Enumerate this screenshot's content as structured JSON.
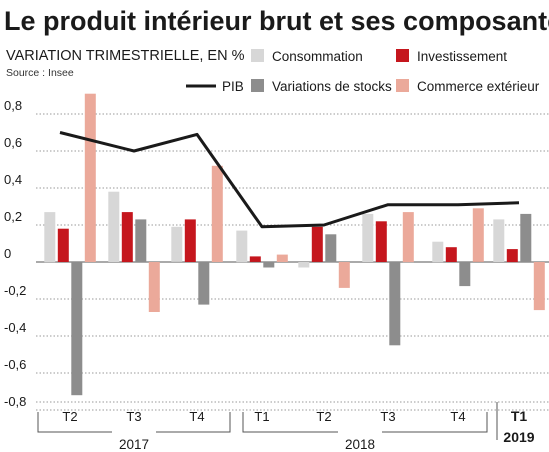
{
  "header": {
    "title": "Le produit intérieur brut et ses composantes",
    "subtitle": "VARIATION TRIMESTRIELLE, EN %",
    "source": "Source : Insee"
  },
  "colors": {
    "consommation": "#d7d7d7",
    "investissement": "#c5161d",
    "stocks": "#8d8d8d",
    "commerce": "#eba99a",
    "pib": "#1a1a1a",
    "grid": "#9a9a9a"
  },
  "chart_data": {
    "type": "bar",
    "title": "Le produit intérieur brut et ses composantes",
    "subtitle": "VARIATION TRIMESTRIELLE, EN %",
    "categories": [
      "T2",
      "T3",
      "T4",
      "T1",
      "T2",
      "T3",
      "T4",
      "T1"
    ],
    "year_groups": [
      {
        "label": "2017",
        "from": 0,
        "to": 2
      },
      {
        "label": "2018",
        "from": 3,
        "to": 6
      },
      {
        "label": "2019",
        "from": 7,
        "to": 7
      }
    ],
    "ylim": [
      -0.85,
      0.85
    ],
    "yticks": [
      {
        "v": 0.8,
        "label": "0,8"
      },
      {
        "v": 0.6,
        "label": "0,6"
      },
      {
        "v": 0.4,
        "label": "0,4"
      },
      {
        "v": 0.2,
        "label": "0,2"
      },
      {
        "v": 0,
        "label": "0"
      },
      {
        "v": -0.2,
        "label": "-0,2"
      },
      {
        "v": -0.4,
        "label": "-0,4"
      },
      {
        "v": -0.6,
        "label": "-0,6"
      },
      {
        "v": -0.8,
        "label": "-0,8"
      }
    ],
    "series": [
      {
        "name": "Consommation",
        "key": "consommation",
        "values": [
          0.27,
          0.38,
          0.19,
          0.17,
          -0.03,
          0.26,
          0.11,
          0.23
        ]
      },
      {
        "name": "Investissement",
        "key": "investissement",
        "values": [
          0.18,
          0.27,
          0.23,
          0.03,
          0.19,
          0.22,
          0.08,
          0.07
        ]
      },
      {
        "name": "Variations de stocks",
        "key": "stocks",
        "values": [
          -0.72,
          0.23,
          -0.23,
          -0.03,
          0.15,
          -0.45,
          -0.13,
          0.26
        ]
      },
      {
        "name": "Commerce extérieur",
        "key": "commerce",
        "values": [
          0.91,
          -0.27,
          0.52,
          0.04,
          -0.14,
          0.27,
          0.29,
          -0.26
        ]
      }
    ],
    "line": {
      "name": "PIB",
      "key": "pib",
      "values": [
        0.7,
        0.6,
        0.69,
        0.19,
        0.2,
        0.31,
        0.31,
        0.32
      ]
    },
    "grid": true,
    "legend": "top"
  }
}
